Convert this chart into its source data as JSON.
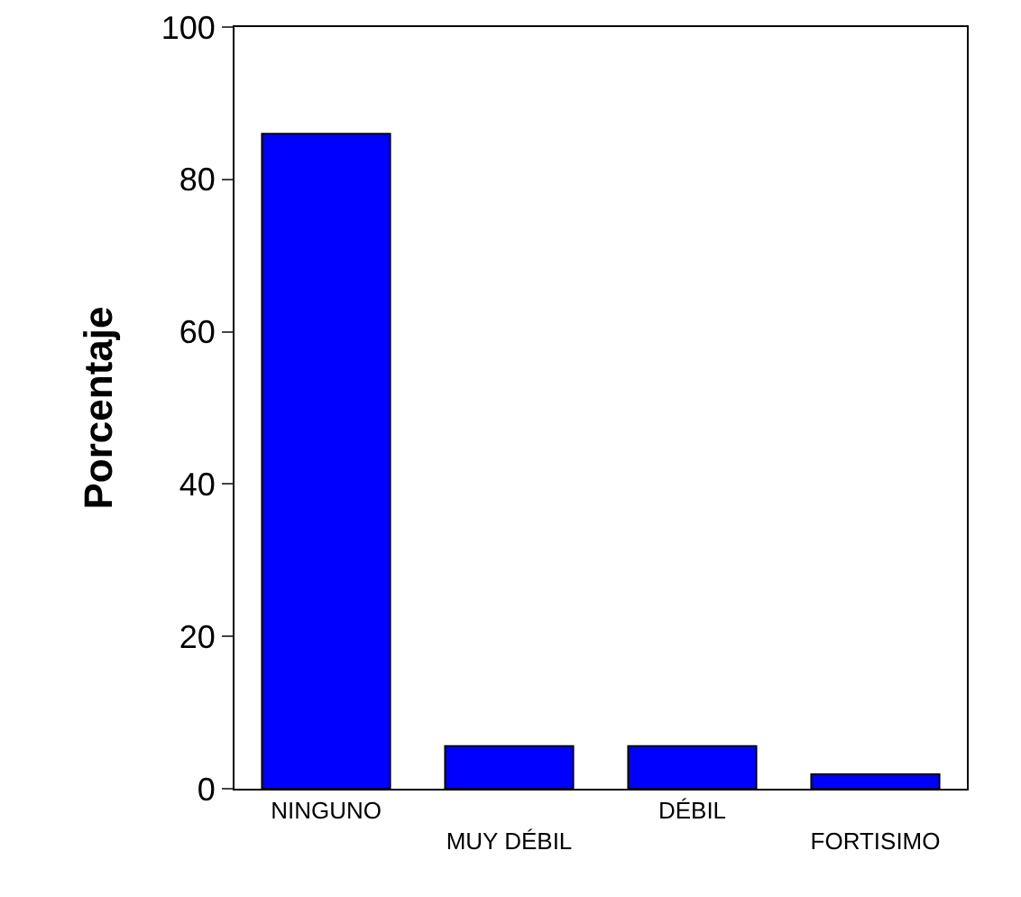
{
  "chart_data": {
    "type": "bar",
    "ylabel": "Porcentaje",
    "categories": [
      "NINGUNO",
      "MUY DÉBIL",
      "DÉBIL",
      "FORTISIMO"
    ],
    "values": [
      86,
      5.6,
      5.6,
      1.9
    ],
    "color": "#0000ff",
    "ylim": [
      0,
      100
    ],
    "yticks": [
      0,
      20,
      40,
      60,
      80,
      100
    ],
    "grid": false
  }
}
